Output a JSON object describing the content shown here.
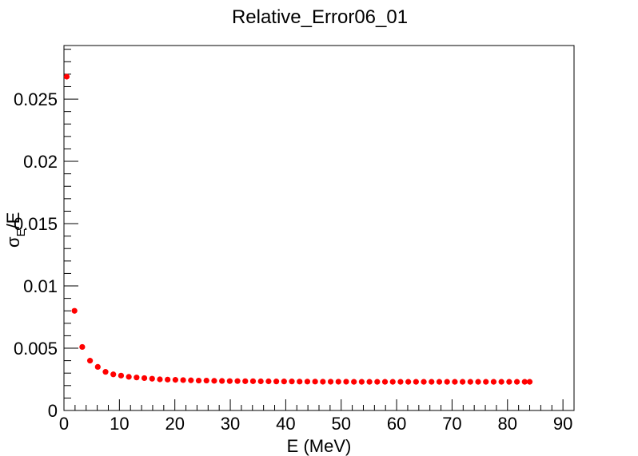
{
  "chart_data": {
    "type": "scatter",
    "title": "Relative_Error06_01",
    "xlabel": "E (MeV)",
    "ylabel": {
      "symbol": "σ",
      "subscript": "E",
      "suffix": "/E"
    },
    "xlim": [
      0,
      92
    ],
    "ylim": [
      0,
      0.0293
    ],
    "x_ticks": [
      0,
      10,
      20,
      30,
      40,
      50,
      60,
      70,
      80,
      90
    ],
    "x_tick_labels": [
      "0",
      "10",
      "20",
      "30",
      "40",
      "50",
      "60",
      "70",
      "80",
      "90"
    ],
    "y_ticks": [
      0,
      0.005,
      0.01,
      0.015,
      0.02,
      0.025
    ],
    "y_tick_labels": [
      "0",
      "0.005",
      "0.01",
      "0.015",
      "0.02",
      "0.025"
    ],
    "grid": false,
    "marker_color": "#ff0000",
    "series": [
      {
        "x": [
          0.5,
          1.9,
          3.3,
          4.7,
          6.1,
          7.5,
          8.9,
          10.3,
          11.7,
          13.1,
          14.5,
          15.9,
          17.3,
          18.7,
          20.1,
          21.5,
          22.9,
          24.3,
          25.7,
          27.1,
          28.5,
          29.9,
          31.3,
          32.7,
          34.1,
          35.5,
          36.9,
          38.3,
          39.7,
          41.1,
          42.5,
          43.9,
          45.3,
          46.7,
          48.1,
          49.5,
          50.9,
          52.3,
          53.7,
          55.1,
          56.5,
          57.9,
          59.3,
          60.7,
          62.1,
          63.5,
          64.9,
          66.3,
          67.7,
          69.1,
          70.5,
          71.9,
          73.3,
          74.7,
          76.1,
          77.5,
          78.9,
          80.3,
          81.7,
          83.1,
          84.0
        ],
        "y": [
          0.0268,
          0.008,
          0.0051,
          0.004,
          0.0035,
          0.0031,
          0.0029,
          0.0028,
          0.0027,
          0.00265,
          0.0026,
          0.00255,
          0.0025,
          0.00248,
          0.00246,
          0.00244,
          0.00242,
          0.0024,
          0.0024,
          0.00238,
          0.00237,
          0.00236,
          0.00236,
          0.00235,
          0.00235,
          0.00234,
          0.00234,
          0.00233,
          0.00233,
          0.00233,
          0.00232,
          0.00232,
          0.00232,
          0.00231,
          0.00231,
          0.00231,
          0.00231,
          0.0023,
          0.0023,
          0.0023,
          0.0023,
          0.0023,
          0.0023,
          0.0023,
          0.0023,
          0.0023,
          0.0023,
          0.0023,
          0.0023,
          0.0023,
          0.0023,
          0.0023,
          0.0023,
          0.0023,
          0.0023,
          0.0023,
          0.0023,
          0.0023,
          0.0023,
          0.0023,
          0.0023
        ]
      }
    ]
  }
}
